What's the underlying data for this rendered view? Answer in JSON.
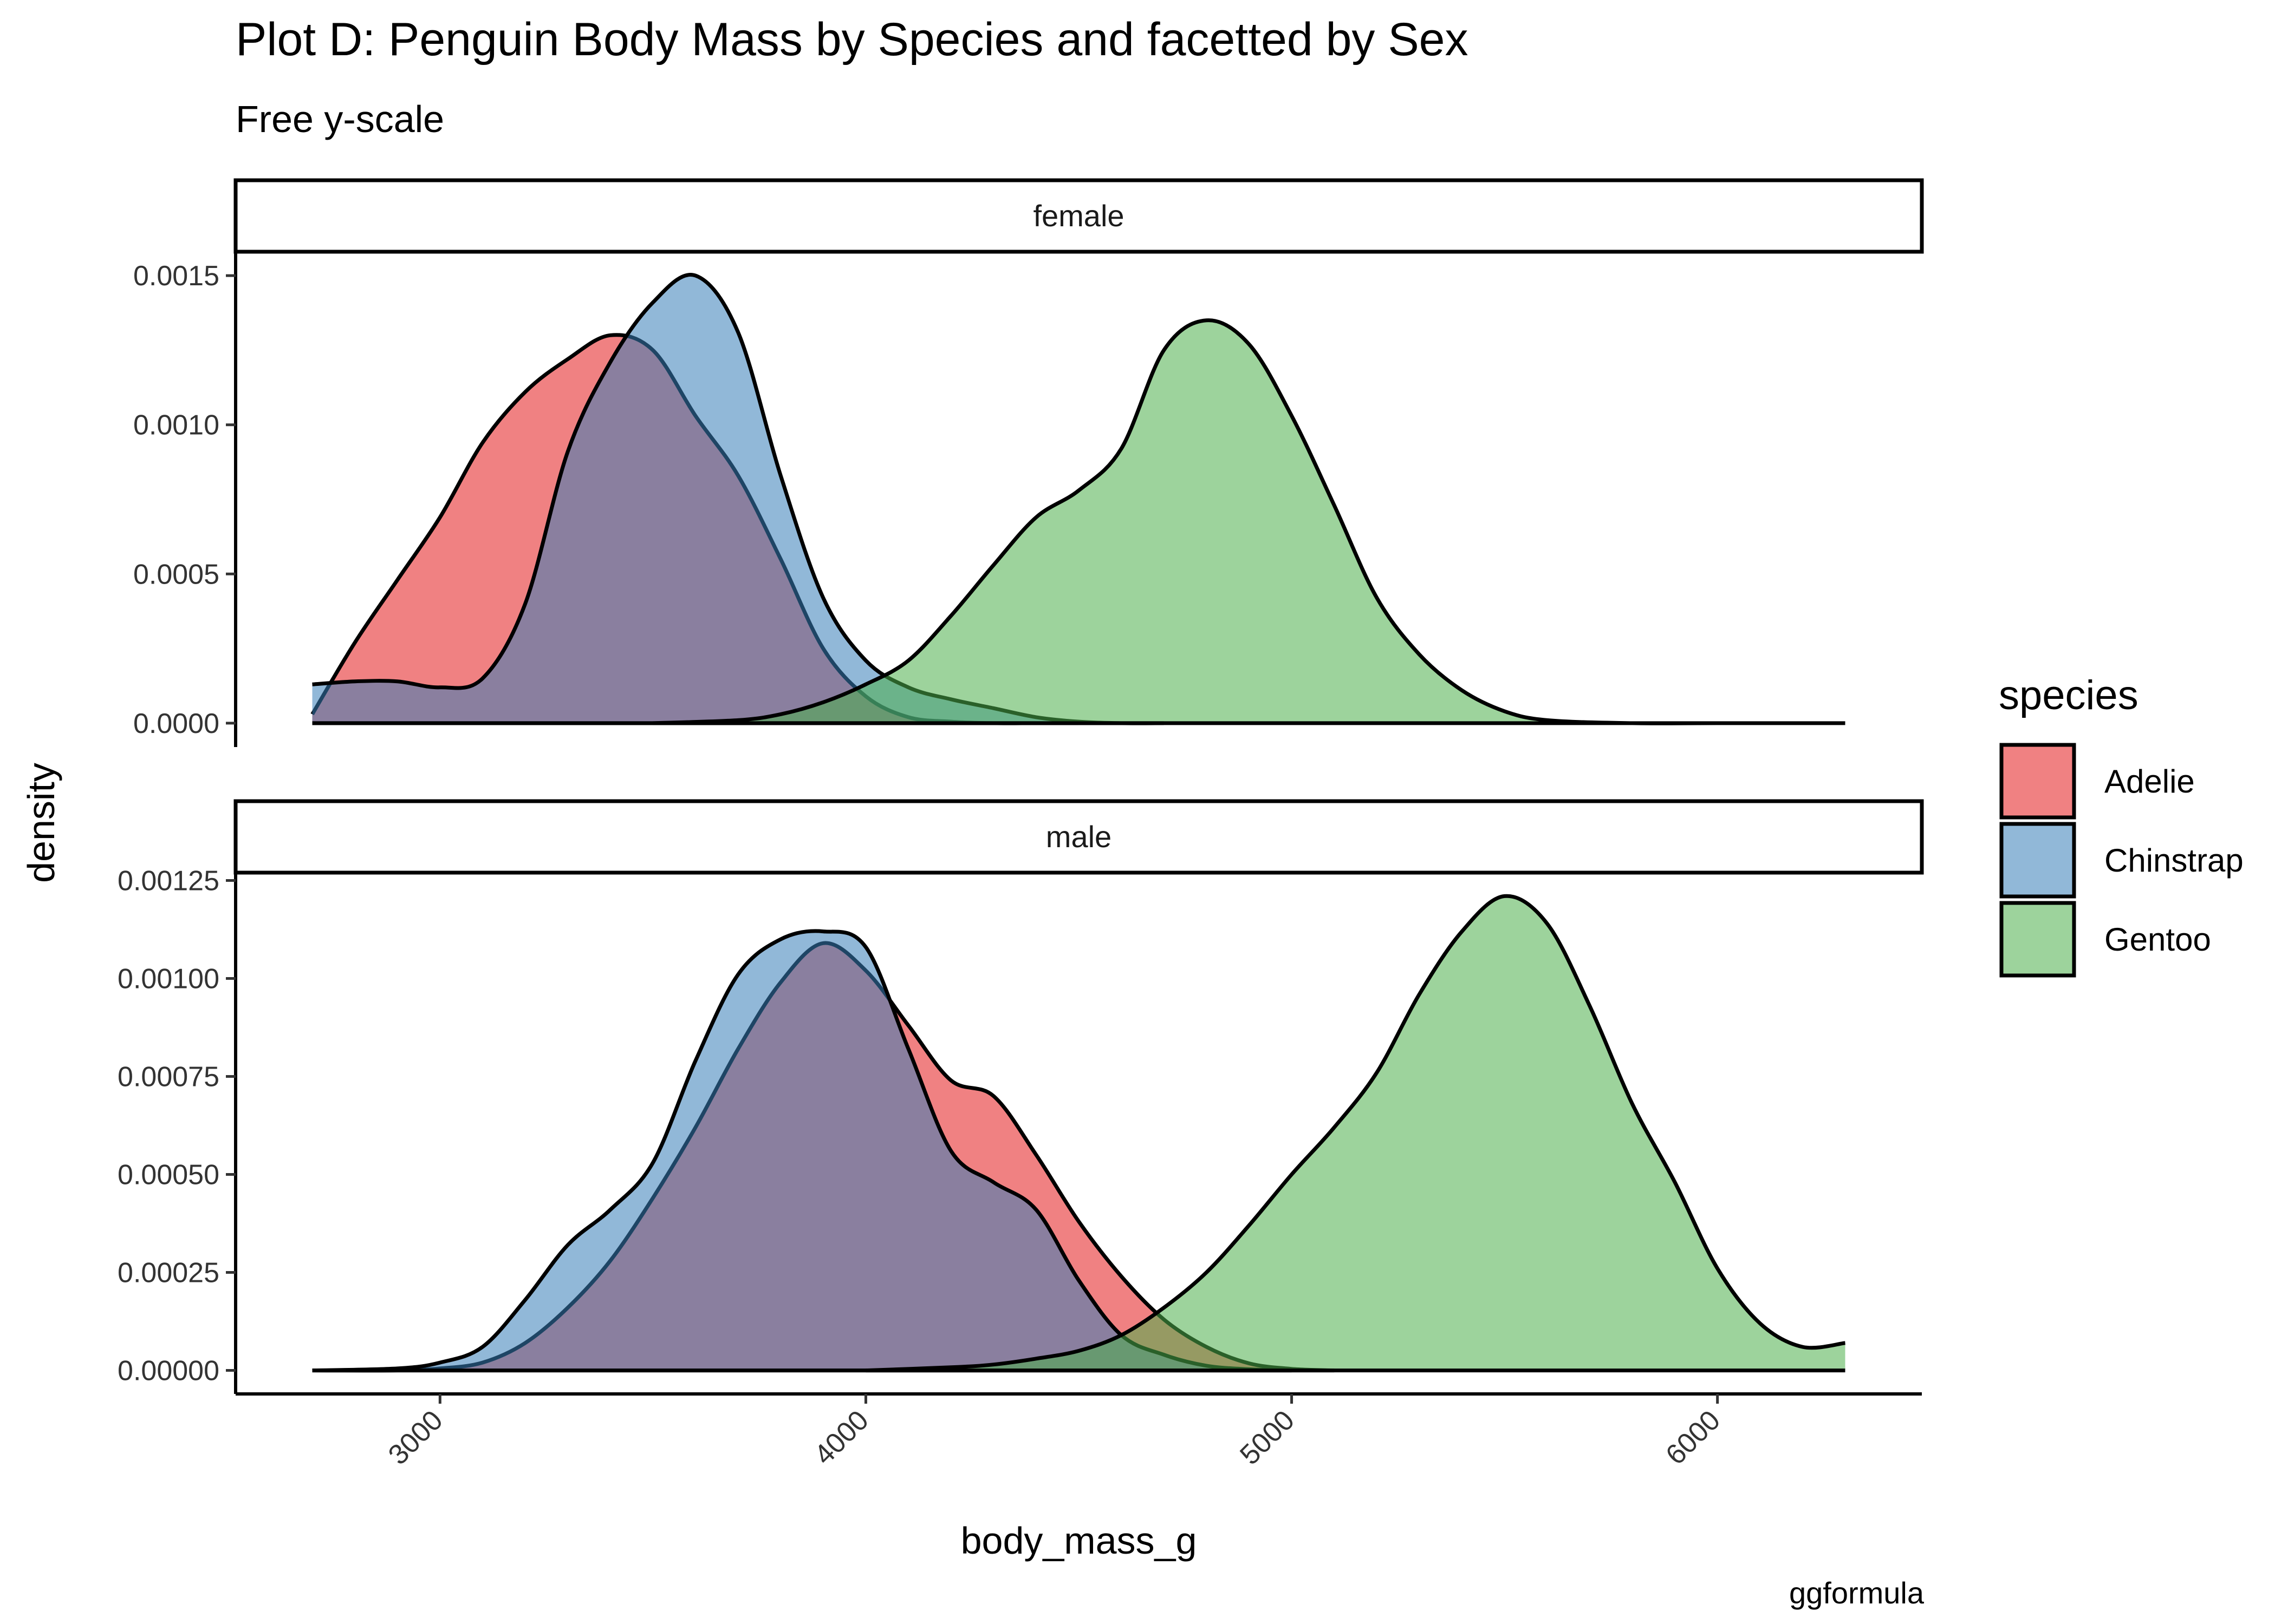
{
  "chart_data": {
    "type": "area",
    "title": "Plot D: Penguin Body Mass by Species and facetted by Sex",
    "subtitle": "Free y-scale",
    "caption": "ggformula",
    "xlabel": "body_mass_g",
    "ylabel": "density",
    "xlim": [
      2520,
      6480
    ],
    "x_ticks": [
      3000,
      4000,
      5000,
      6000
    ],
    "x_tick_labels": [
      "3000",
      "4000",
      "5000",
      "6000"
    ],
    "legend": {
      "title": "species",
      "position": "right"
    },
    "colors": {
      "Adelie": "#E41A1C",
      "Chinstrap": "#377EB8",
      "Gentoo": "#4DAF4A"
    },
    "fill_opacity": 0.55,
    "grid": false,
    "facets": [
      {
        "label": "female",
        "ylim": [
          -8e-05,
          0.00158
        ],
        "y_ticks": [
          0,
          0.0005,
          0.001,
          0.0015
        ],
        "y_tick_labels": [
          "0.0000",
          "0.0005",
          "0.0010",
          "0.0015"
        ],
        "series": [
          {
            "name": "Adelie",
            "x": [
              2700,
              2800,
              2900,
              3000,
              3100,
              3200,
              3300,
              3400,
              3500,
              3600,
              3700,
              3800,
              3900,
              4000,
              4100,
              4200,
              4300,
              4400,
              4500
            ],
            "y": [
              3e-05,
              0.00027,
              0.00048,
              0.00069,
              0.00094,
              0.00111,
              0.00122,
              0.0013,
              0.00125,
              0.00103,
              0.00083,
              0.00055,
              0.00025,
              9e-05,
              2e-05,
              5e-06,
              0,
              0,
              0
            ]
          },
          {
            "name": "Chinstrap",
            "x": [
              2700,
              2800,
              2900,
              3000,
              3100,
              3200,
              3300,
              3400,
              3500,
              3600,
              3700,
              3800,
              3900,
              4000,
              4100,
              4200,
              4300,
              4400,
              4500,
              4600,
              4700
            ],
            "y": [
              0.00013,
              0.00014,
              0.00014,
              0.00012,
              0.00015,
              0.0004,
              0.00091,
              0.00121,
              0.00141,
              0.0015,
              0.00131,
              0.00083,
              0.00042,
              0.00021,
              0.00012,
              8e-05,
              5e-05,
              2e-05,
              5e-06,
              0,
              0
            ]
          },
          {
            "name": "Gentoo",
            "x": [
              3500,
              3700,
              3800,
              3900,
              4000,
              4100,
              4200,
              4300,
              4400,
              4500,
              4600,
              4700,
              4800,
              4900,
              5000,
              5100,
              5200,
              5300,
              5400,
              5500,
              5600,
              5800,
              6000,
              6300
            ],
            "y": [
              0,
              1e-05,
              3e-05,
              7e-05,
              0.00013,
              0.00021,
              0.00036,
              0.00053,
              0.00069,
              0.00078,
              0.00092,
              0.00125,
              0.00135,
              0.00127,
              0.00103,
              0.00073,
              0.00042,
              0.00023,
              0.00011,
              4e-05,
              1e-05,
              0,
              0,
              0
            ]
          }
        ]
      },
      {
        "label": "male",
        "ylim": [
          -6e-05,
          0.00127
        ],
        "y_ticks": [
          0,
          0.00025,
          0.0005,
          0.00075,
          0.001,
          0.00125
        ],
        "y_tick_labels": [
          "0.00000",
          "0.00025",
          "0.00050",
          "0.00075",
          "0.00100",
          "0.00125"
        ],
        "series": [
          {
            "name": "Adelie",
            "x": [
              2700,
              2900,
              3000,
              3100,
              3200,
              3300,
              3400,
              3500,
              3600,
              3700,
              3800,
              3900,
              4000,
              4100,
              4200,
              4300,
              4400,
              4500,
              4600,
              4700,
              4800,
              4900,
              5000,
              5100
            ],
            "y": [
              0,
              0,
              5e-06,
              2e-05,
              7e-05,
              0.00016,
              0.00028,
              0.00044,
              0.00062,
              0.00082,
              0.00099,
              0.00109,
              0.00102,
              0.00088,
              0.00074,
              0.0007,
              0.00055,
              0.00038,
              0.00024,
              0.00013,
              6e-05,
              1.8e-05,
              4e-06,
              0
            ]
          },
          {
            "name": "Chinstrap",
            "x": [
              2700,
              2900,
              3000,
              3100,
              3200,
              3300,
              3400,
              3500,
              3600,
              3700,
              3800,
              3900,
              4000,
              4100,
              4200,
              4300,
              4400,
              4500,
              4600,
              4700,
              4800,
              4900,
              5000
            ],
            "y": [
              0,
              5e-06,
              2e-05,
              6e-05,
              0.00018,
              0.00032,
              0.00041,
              0.00053,
              0.00079,
              0.00101,
              0.0011,
              0.00112,
              0.00108,
              0.00082,
              0.00056,
              0.00048,
              0.00041,
              0.00023,
              9e-05,
              4e-05,
              1.2e-05,
              3e-06,
              0
            ]
          },
          {
            "name": "Gentoo",
            "x": [
              4000,
              4200,
              4300,
              4400,
              4500,
              4600,
              4700,
              4800,
              4900,
              5000,
              5100,
              5200,
              5300,
              5400,
              5500,
              5600,
              5700,
              5800,
              5900,
              6000,
              6100,
              6200,
              6300
            ],
            "y": [
              0,
              8e-06,
              1.5e-05,
              3e-05,
              5e-05,
              9e-05,
              0.00016,
              0.00025,
              0.00037,
              0.0005,
              0.00062,
              0.00076,
              0.00096,
              0.00112,
              0.00121,
              0.00114,
              0.00093,
              0.00068,
              0.00048,
              0.00026,
              0.00012,
              6e-05,
              7e-05
            ]
          }
        ]
      }
    ]
  }
}
